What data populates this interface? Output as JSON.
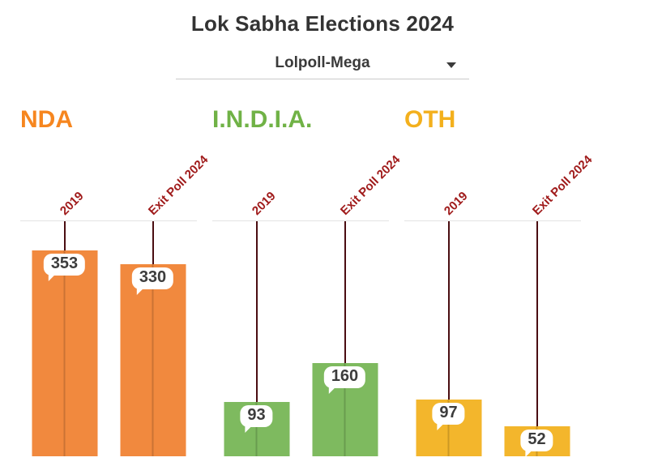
{
  "title": "Lok Sabha Elections 2024",
  "dropdown": {
    "selected": "Lolpoll-Mega"
  },
  "chart_data": {
    "type": "bar",
    "title": "Lok Sabha Elections 2024",
    "control_selected": "Lolpoll-Mega",
    "categories": [
      "2019",
      "Exit Poll 2024"
    ],
    "groups": [
      {
        "name": "NDA",
        "color": "#f1893e",
        "label_color": "#f6861f",
        "series": [
          {
            "label": "2019",
            "value": 353
          },
          {
            "label": "Exit Poll 2024",
            "value": 330
          }
        ]
      },
      {
        "name": "I.N.D.I.A.",
        "color": "#7eba5f",
        "label_color": "#70b246",
        "series": [
          {
            "label": "2019",
            "value": 93
          },
          {
            "label": "Exit Poll 2024",
            "value": 160
          }
        ]
      },
      {
        "name": "OTH",
        "color": "#f3b62c",
        "label_color": "#f3b01d",
        "series": [
          {
            "label": "2019",
            "value": 97
          },
          {
            "label": "Exit Poll 2024",
            "value": 52
          }
        ]
      }
    ],
    "ylim": [
      0,
      403
    ],
    "grid": false,
    "legend": "none",
    "axis_label_color": "#a01b1b",
    "whisker_color": "#4a0d11",
    "value_label_style": "white speech bubble at bar top"
  }
}
